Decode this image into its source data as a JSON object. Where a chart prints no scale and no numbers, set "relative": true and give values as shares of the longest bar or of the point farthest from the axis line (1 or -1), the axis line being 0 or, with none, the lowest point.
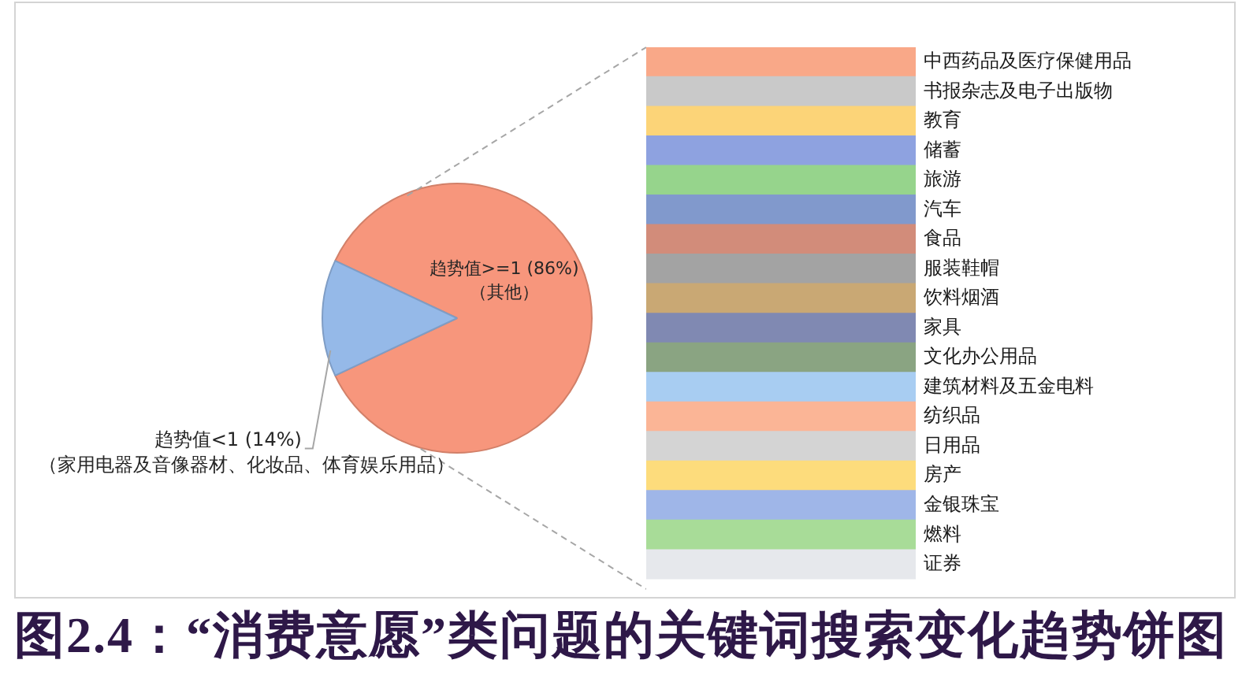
{
  "chart_data": [
    {
      "type": "pie",
      "title": "图2.4：“消费意愿”类问题的关键词搜索变化趋势饼图",
      "categories": [
        "趋势值>=1",
        "趋势值<1"
      ],
      "values": [
        86,
        14
      ],
      "colors": [
        "#f7967c",
        "#95b9e8"
      ],
      "value_labels": [
        "(86%)",
        "(14%)"
      ],
      "annotations": [
        "（其他）",
        "（家用电器及音像器材、化妆品、体育娱乐用品）"
      ]
    },
    {
      "type": "bar",
      "orientation": "horizontal",
      "relative": true,
      "categories": [
        "中西药品及医疗保健用品",
        "书报杂志及电子出版物",
        "教育",
        "储蓄",
        "旅游",
        "汽车",
        "食品",
        "服装鞋帽",
        "饮料烟酒",
        "家具",
        "文化办公用品",
        "建筑材料及五金电料",
        "纺织品",
        "日用品",
        "房产",
        "金银珠宝",
        "燃料",
        "证券"
      ],
      "values": [
        1,
        1,
        1,
        1,
        1,
        1,
        1,
        1,
        1,
        1,
        1,
        1,
        1,
        1,
        1,
        1,
        1,
        1
      ],
      "colors": [
        "#f9a888",
        "#c9c9c9",
        "#fcd478",
        "#8ea2e0",
        "#96d48c",
        "#8199cc",
        "#d28c7a",
        "#a3a3a3",
        "#c9a874",
        "#8089b2",
        "#8aa482",
        "#a8cdf2",
        "#fbb596",
        "#d4d4d4",
        "#fddc7c",
        "#9fb6e8",
        "#a8dc98",
        "#e6e8ec"
      ]
    }
  ]
}
